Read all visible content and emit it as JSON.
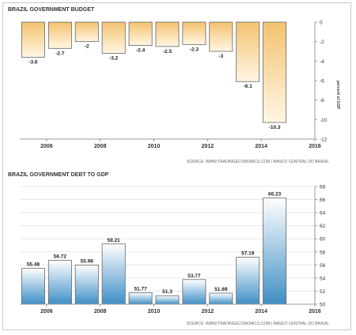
{
  "chart_data": [
    {
      "type": "bar",
      "title": "BRAZIL GOVERNMENT BUDGET",
      "source": "SOURCE: WWW.TRADINGECONOMICS.COM | BANCO CENTRAL DO BRASIL",
      "ylabel": "percent of GDP",
      "x": [
        2005.5,
        2006.5,
        2007.5,
        2008.5,
        2009.5,
        2010.5,
        2011.5,
        2012.5,
        2013.5,
        2014.5
      ],
      "values": [
        -3.6,
        -2.7,
        -2,
        -3.2,
        -2.4,
        -2.5,
        -2.3,
        -3,
        -6.1,
        -10.3
      ],
      "value_labels": [
        "-3.6",
        "-2.7",
        "-2",
        "-3.2",
        "-2.4",
        "-2.5",
        "-2.3",
        "-3",
        "-6.1",
        "-10.3"
      ],
      "x_ticks": [
        "2006",
        "2008",
        "2010",
        "2012",
        "2014",
        "2016"
      ],
      "y_ticks": [
        "0",
        "-2",
        "-4",
        "-6",
        "-8",
        "-10",
        "-12"
      ],
      "xlim": [
        2005,
        2016
      ],
      "ylim": [
        -12,
        0
      ],
      "y_axis_side": "right",
      "grid": false,
      "colors": {
        "bar_light": "#fff6e4",
        "bar_dark": "#f3c26f",
        "bar_stroke": "#666666"
      }
    },
    {
      "type": "bar",
      "title": "BRAZIL GOVERNMENT DEBT TO GDP",
      "source": "SOURCE: WWW.TRADINGECONOMICS.COM | BANCO CENTRAL DO BRASIL",
      "x": [
        2005.5,
        2006.5,
        2007.5,
        2008.5,
        2009.5,
        2010.5,
        2011.5,
        2012.5,
        2013.5,
        2014.5
      ],
      "values": [
        55.48,
        56.72,
        55.98,
        59.21,
        51.77,
        51.3,
        53.77,
        51.69,
        57.19,
        66.23
      ],
      "value_labels": [
        "55.48",
        "56.72",
        "55.98",
        "59.21",
        "51.77",
        "51.3",
        "53.77",
        "51.69",
        "57.19",
        "66.23"
      ],
      "x_ticks": [
        "2006",
        "2008",
        "2010",
        "2012",
        "2014",
        "2016"
      ],
      "y_ticks": [
        "50",
        "52",
        "54",
        "56",
        "58",
        "60",
        "62",
        "64",
        "66",
        "68"
      ],
      "xlim": [
        2005,
        2016
      ],
      "ylim": [
        50,
        68
      ],
      "y_axis_side": "right",
      "grid": true,
      "colors": {
        "bar_light": "#ffffff",
        "bar_dark": "#3f8fc6",
        "bar_stroke": "#666666"
      }
    }
  ]
}
